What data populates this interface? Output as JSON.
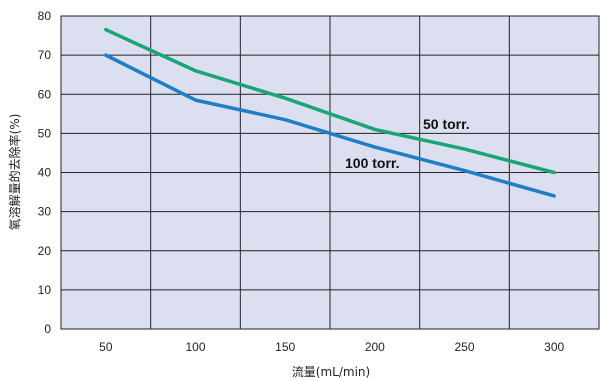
{
  "chart_data": {
    "type": "line",
    "title": "",
    "xlabel": "流量(mL/min)",
    "ylabel": "氧溶解量的去除率(%)",
    "x": [
      50,
      100,
      150,
      200,
      250,
      300
    ],
    "x_ticks": [
      "50",
      "100",
      "150",
      "200",
      "250",
      "300"
    ],
    "y_ticks": [
      "0",
      "10",
      "20",
      "30",
      "40",
      "50",
      "60",
      "70",
      "80"
    ],
    "xlim": [
      25,
      325
    ],
    "ylim": [
      0,
      80
    ],
    "grid": true,
    "background_color": "#dcdff0",
    "series": [
      {
        "name": "50 torr.",
        "color": "#1aa577",
        "values": [
          76.5,
          66,
          59,
          51,
          46,
          40
        ]
      },
      {
        "name": "100 torr.",
        "color": "#1f7fc4",
        "values": [
          70,
          58.5,
          53.5,
          46.5,
          40.5,
          34
        ]
      }
    ]
  }
}
